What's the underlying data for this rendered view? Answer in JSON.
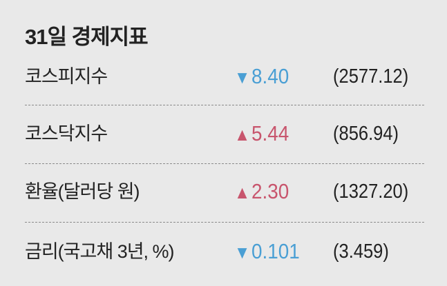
{
  "title": "31일 경제지표",
  "colors": {
    "down": "#4a9fd4",
    "up": "#c8556d",
    "background": "#e9e9e9"
  },
  "chart_data": {
    "type": "table",
    "title": "31일 경제지표",
    "rows": [
      {
        "label": "코스피지수",
        "direction": "down",
        "arrow": "▼",
        "change": "8.40",
        "level": "(2577.12)"
      },
      {
        "label": "코스닥지수",
        "direction": "up",
        "arrow": "▲",
        "change": "5.44",
        "level": "(856.94)"
      },
      {
        "label": "환율(달러당 원)",
        "direction": "up",
        "arrow": "▲",
        "change": "2.30",
        "level": "(1327.20)"
      },
      {
        "label": "금리(국고채 3년, %)",
        "direction": "down",
        "arrow": "▼",
        "change": "0.101",
        "level": "(3.459)"
      }
    ]
  }
}
